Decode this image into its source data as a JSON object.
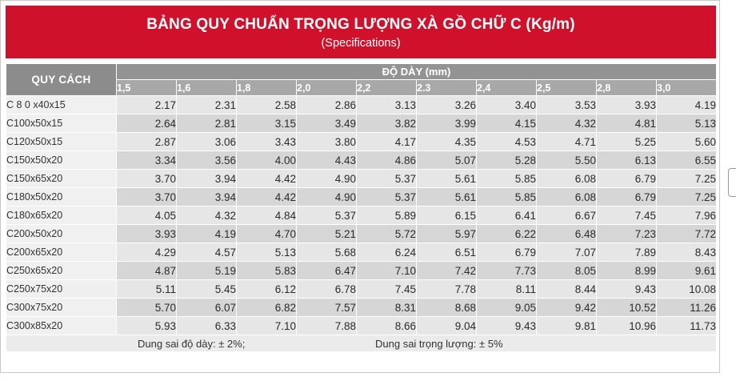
{
  "title": "BẢNG QUY CHUẨN TRỌNG LƯỢNG XÀ GỒ CHỮ  C (Kg/m)",
  "subtitle": "(Specifications)",
  "header": {
    "spec_label": "QUY  CÁCH",
    "thickness_label": "ĐỘ DÀY (mm)",
    "thicknesses": [
      "1,5",
      "1,6",
      "1,8",
      "2,0",
      "2,2",
      "2.3",
      "2,4",
      "2,5",
      "2,8",
      "3,0"
    ]
  },
  "rows": [
    {
      "name": "C 8 0 x40x15",
      "values": [
        "2.17",
        "2.31",
        "2.58",
        "2.86",
        "3.13",
        "3.26",
        "3.40",
        "3.53",
        "3.93",
        "4.19"
      ]
    },
    {
      "name": "C100x50x15",
      "values": [
        "2.64",
        "2.81",
        "3.15",
        "3.49",
        "3.82",
        "3.99",
        "4.15",
        "4.32",
        "4.81",
        "5.13"
      ]
    },
    {
      "name": "C120x50x15",
      "values": [
        "2.87",
        "3.06",
        "3.43",
        "3.80",
        "4.17",
        "4.35",
        "4.53",
        "4.71",
        "5.25",
        "5.60"
      ]
    },
    {
      "name": "C150x50x20",
      "values": [
        "3.34",
        "3.56",
        "4.00",
        "4.43",
        "4.86",
        "5.07",
        "5.28",
        "5.50",
        "6.13",
        "6.55"
      ]
    },
    {
      "name": "C150x65x20",
      "values": [
        "3.70",
        "3.94",
        "4.42",
        "4.90",
        "5.37",
        "5.61",
        "5.85",
        "6.08",
        "6.79",
        "7.25"
      ]
    },
    {
      "name": "C180x50x20",
      "values": [
        "3.70",
        "3.94",
        "4.42",
        "4.90",
        "5.37",
        "5.61",
        "5.85",
        "6.08",
        "6.79",
        "7.25"
      ]
    },
    {
      "name": "C180x65x20",
      "values": [
        "4.05",
        "4.32",
        "4.84",
        "5.37",
        "5.89",
        "6.15",
        "6.41",
        "6.67",
        "7.45",
        "7.96"
      ]
    },
    {
      "name": "C200x50x20",
      "values": [
        "3.93",
        "4.19",
        "4.70",
        "5.21",
        "5.72",
        "5.97",
        "6.22",
        "6.48",
        "7.23",
        "7.72"
      ]
    },
    {
      "name": "C200x65x20",
      "values": [
        "4.29",
        "4.57",
        "5.13",
        "5.68",
        "6.24",
        "6.51",
        "6.79",
        "7.07",
        "7.89",
        "8.43"
      ]
    },
    {
      "name": "C250x65x20",
      "values": [
        "4.87",
        "5.19",
        "5.83",
        "6.47",
        "7.10",
        "7.42",
        "7.73",
        "8.05",
        "8.99",
        "9.61"
      ]
    },
    {
      "name": "C250x75x20",
      "values": [
        "5.11",
        "5.45",
        "6.12",
        "6.78",
        "7.45",
        "7.78",
        "8.11",
        "8.44",
        "9.43",
        "10.08"
      ]
    },
    {
      "name": "C300x75x20",
      "values": [
        "5.70",
        "6.07",
        "6.82",
        "7.57",
        "8.31",
        "8.68",
        "9.05",
        "9.42",
        "10.52",
        "11.26"
      ]
    },
    {
      "name": "C300x85x20",
      "values": [
        "5.93",
        "6.33",
        "7.10",
        "7.88",
        "8.66",
        "9.04",
        "9.43",
        "9.81",
        "10.96",
        "11.73"
      ]
    }
  ],
  "footer": {
    "thickness_tolerance": "Dung sai độ dày: ± 2%;",
    "weight_tolerance": "Dung sai trọng lượng: ± 5%"
  },
  "colors": {
    "banner": "#d0112b",
    "header_dark": "#8c8c8c",
    "header_light": "#a8a8a8",
    "name_cell": "#f0f0f0"
  }
}
